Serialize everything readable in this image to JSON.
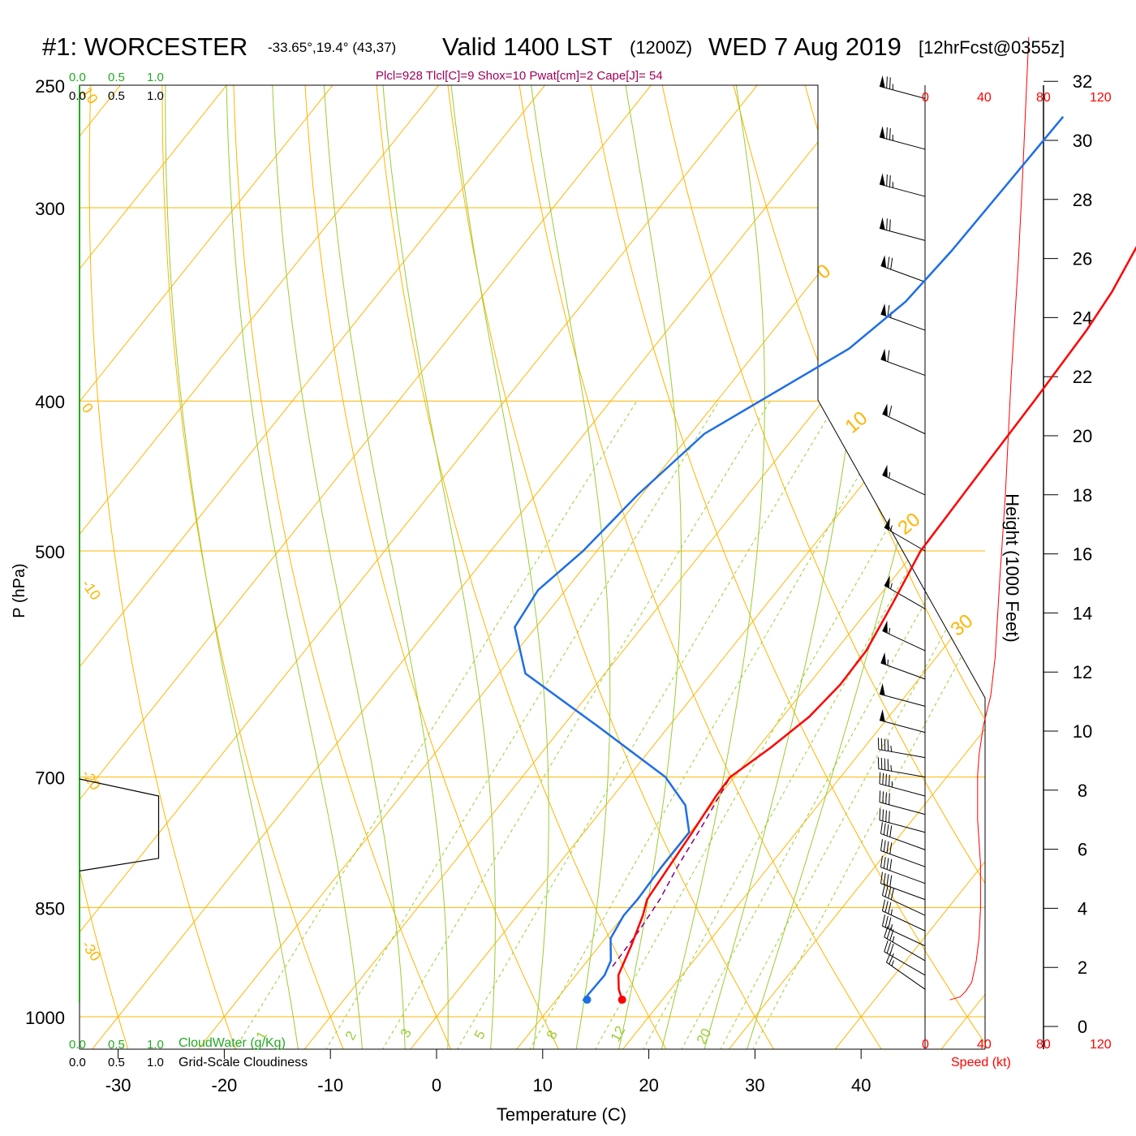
{
  "header": {
    "station": "#1: WORCESTER",
    "coords": "-33.65°,19.4° (43,37)",
    "valid": "Valid 1400 LST",
    "utc": "(1200Z)",
    "date": "WED 7 Aug 2019",
    "forecast": "[12hrFcst@0355z]"
  },
  "indices": "Plcl=928 Tlcl[C]=9 Shox=10 Pwat[cm]=2 Cape[J]= 54",
  "cloud_scale": {
    "ticks": [
      "0.0",
      "0.5",
      "1.0"
    ],
    "water_label": "CloudWater (g/Kg)",
    "cloudiness_label": "Grid-Scale Cloudiness"
  },
  "speed_axis": {
    "ticks": [
      "0",
      "40",
      "80",
      "120"
    ],
    "label": "Speed (kt)"
  },
  "colors": {
    "temperature": "#ff0000",
    "dewpoint": "#1e6ee6",
    "isotherm": "#ffb400",
    "dry_adiabat": "#ffb400",
    "moist_adiabat": "#99cc33",
    "mixing_ratio": "#99cc33",
    "parcel": "#800080",
    "cloud_axis": "#22aa22",
    "indices": "#a0005a",
    "speed_profile": "#ff0000"
  },
  "chart_data": {
    "type": "skew-t",
    "xlabel": "Temperature (C)",
    "ylabel": "P (hPa)",
    "y2label": "Height (1000 Feet)",
    "x_ticks": [
      -30,
      -20,
      -10,
      0,
      10,
      20,
      30,
      40
    ],
    "p_ticks": [
      250,
      300,
      400,
      500,
      700,
      850,
      1000
    ],
    "height_ticks": [
      0,
      2,
      4,
      6,
      8,
      10,
      12,
      14,
      16,
      18,
      20,
      22,
      24,
      26,
      28,
      30,
      32
    ],
    "isotherm_labels": [
      "10",
      "0",
      "-10",
      "-20",
      "-30"
    ],
    "dry_adiabat_labels": [
      "0",
      "10",
      "20",
      "30"
    ],
    "mixing_ratio_labels": [
      "1",
      "2",
      "3",
      "5",
      "8",
      "12",
      "20"
    ],
    "temperature": [
      {
        "p": 975,
        "t": 16.2
      },
      {
        "p": 960,
        "t": 15.1
      },
      {
        "p": 940,
        "t": 14.0
      },
      {
        "p": 900,
        "t": 13.0
      },
      {
        "p": 860,
        "t": 11.8
      },
      {
        "p": 840,
        "t": 11.0
      },
      {
        "p": 800,
        "t": 10.6
      },
      {
        "p": 760,
        "t": 10.2
      },
      {
        "p": 720,
        "t": 9.7
      },
      {
        "p": 700,
        "t": 9.6
      },
      {
        "p": 670,
        "t": 11.2
      },
      {
        "p": 640,
        "t": 12.5
      },
      {
        "p": 610,
        "t": 13.0
      },
      {
        "p": 580,
        "t": 12.9
      },
      {
        "p": 540,
        "t": 11.8
      },
      {
        "p": 500,
        "t": 10.5
      },
      {
        "p": 450,
        "t": 10.2
      },
      {
        "p": 400,
        "t": 9.9
      },
      {
        "p": 360,
        "t": 9.5
      },
      {
        "p": 340,
        "t": 9.0
      },
      {
        "p": 300,
        "t": 7.0
      },
      {
        "p": 262,
        "t": 3.5
      }
    ],
    "dewpoint": [
      {
        "p": 975,
        "t": 12.9
      },
      {
        "p": 975,
        "t": 12.6
      },
      {
        "p": 940,
        "t": 12.7
      },
      {
        "p": 920,
        "t": 12.2
      },
      {
        "p": 890,
        "t": 10.5
      },
      {
        "p": 860,
        "t": 10.0
      },
      {
        "p": 840,
        "t": 10.1
      },
      {
        "p": 800,
        "t": 9.9
      },
      {
        "p": 760,
        "t": 9.9
      },
      {
        "p": 730,
        "t": 7.5
      },
      {
        "p": 700,
        "t": 3.5
      },
      {
        "p": 650,
        "t": -6.5
      },
      {
        "p": 600,
        "t": -17.5
      },
      {
        "p": 560,
        "t": -22.0
      },
      {
        "p": 530,
        "t": -22.6
      },
      {
        "p": 500,
        "t": -21.3
      },
      {
        "p": 460,
        "t": -20.4
      },
      {
        "p": 420,
        "t": -18.7
      },
      {
        "p": 370,
        "t": -11.5
      },
      {
        "p": 345,
        "t": -9.7
      },
      {
        "p": 320,
        "t": -9.2
      },
      {
        "p": 290,
        "t": -9.0
      },
      {
        "p": 262,
        "t": -8.8
      }
    ],
    "parcel": [
      {
        "p": 928,
        "t": 12.8
      },
      {
        "p": 880,
        "t": 12.6
      },
      {
        "p": 840,
        "t": 12.2
      },
      {
        "p": 800,
        "t": 11.4
      },
      {
        "p": 750,
        "t": 10.6
      },
      {
        "p": 700,
        "t": 9.6
      }
    ],
    "speed_profile": [
      {
        "h": 0.9,
        "kt": 17
      },
      {
        "h": 1.0,
        "kt": 24
      },
      {
        "h": 1.2,
        "kt": 28
      },
      {
        "h": 1.5,
        "kt": 32
      },
      {
        "h": 2.2,
        "kt": 35
      },
      {
        "h": 3.0,
        "kt": 37
      },
      {
        "h": 4.0,
        "kt": 38
      },
      {
        "h": 5.5,
        "kt": 38
      },
      {
        "h": 7.0,
        "kt": 36
      },
      {
        "h": 8.5,
        "kt": 36
      },
      {
        "h": 9.2,
        "kt": 37
      },
      {
        "h": 10.2,
        "kt": 40
      },
      {
        "h": 11.2,
        "kt": 45
      },
      {
        "h": 12.5,
        "kt": 48
      },
      {
        "h": 15.0,
        "kt": 51
      },
      {
        "h": 18.0,
        "kt": 55
      },
      {
        "h": 22.0,
        "kt": 59
      },
      {
        "h": 26.0,
        "kt": 64
      },
      {
        "h": 29.0,
        "kt": 67
      },
      {
        "h": 33.5,
        "kt": 71
      }
    ],
    "wind_barbs": [
      {
        "p": 255,
        "dir": 285,
        "spd": 75
      },
      {
        "p": 275,
        "dir": 285,
        "spd": 75
      },
      {
        "p": 295,
        "dir": 285,
        "spd": 75
      },
      {
        "p": 315,
        "dir": 285,
        "spd": 70
      },
      {
        "p": 335,
        "dir": 290,
        "spd": 70
      },
      {
        "p": 360,
        "dir": 290,
        "spd": 65
      },
      {
        "p": 385,
        "dir": 290,
        "spd": 60
      },
      {
        "p": 420,
        "dir": 295,
        "spd": 60
      },
      {
        "p": 460,
        "dir": 295,
        "spd": 55
      },
      {
        "p": 500,
        "dir": 300,
        "spd": 55
      },
      {
        "p": 545,
        "dir": 300,
        "spd": 55
      },
      {
        "p": 580,
        "dir": 295,
        "spd": 55
      },
      {
        "p": 605,
        "dir": 290,
        "spd": 55
      },
      {
        "p": 630,
        "dir": 285,
        "spd": 50
      },
      {
        "p": 655,
        "dir": 285,
        "spd": 50
      },
      {
        "p": 680,
        "dir": 280,
        "spd": 45
      },
      {
        "p": 700,
        "dir": 280,
        "spd": 45
      },
      {
        "p": 720,
        "dir": 285,
        "spd": 45
      },
      {
        "p": 740,
        "dir": 285,
        "spd": 40
      },
      {
        "p": 760,
        "dir": 285,
        "spd": 40
      },
      {
        "p": 780,
        "dir": 290,
        "spd": 40
      },
      {
        "p": 800,
        "dir": 290,
        "spd": 40
      },
      {
        "p": 820,
        "dir": 290,
        "spd": 40
      },
      {
        "p": 840,
        "dir": 290,
        "spd": 40
      },
      {
        "p": 860,
        "dir": 295,
        "spd": 40
      },
      {
        "p": 880,
        "dir": 295,
        "spd": 35
      },
      {
        "p": 900,
        "dir": 295,
        "spd": 35
      },
      {
        "p": 920,
        "dir": 300,
        "spd": 35
      },
      {
        "p": 940,
        "dir": 300,
        "spd": 30
      },
      {
        "p": 960,
        "dir": 305,
        "spd": 25
      }
    ],
    "cloudiness": [
      {
        "p": 702,
        "v": 0.0
      },
      {
        "p": 720,
        "v": 0.75
      },
      {
        "p": 790,
        "v": 0.75
      },
      {
        "p": 805,
        "v": 0.0
      }
    ]
  }
}
